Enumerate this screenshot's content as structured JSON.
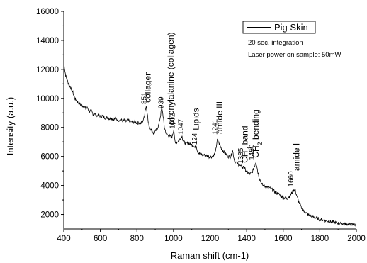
{
  "chart_data": {
    "type": "line",
    "xlabel": "Raman shift (cm-1)",
    "ylabel": "Intensity (a.u.)",
    "xlim": [
      400,
      2000
    ],
    "ylim": [
      1000,
      16000
    ],
    "x_ticks": [
      400,
      600,
      800,
      1000,
      1200,
      1400,
      1600,
      1800,
      2000
    ],
    "y_ticks": [
      2000,
      4000,
      6000,
      8000,
      10000,
      12000,
      14000,
      16000
    ],
    "grid": false,
    "legend": {
      "position": "top-right",
      "entries": [
        "Pig Skin"
      ]
    },
    "notes": [
      "20 sec. integration",
      "Laser power on sample: 50mW"
    ],
    "series": [
      {
        "name": "Pig Skin",
        "color": "#000000",
        "points": [
          [
            400,
            12500
          ],
          [
            405,
            12000
          ],
          [
            410,
            11600
          ],
          [
            420,
            11200
          ],
          [
            430,
            10900
          ],
          [
            440,
            10700
          ],
          [
            450,
            10400
          ],
          [
            460,
            10000
          ],
          [
            470,
            9850
          ],
          [
            480,
            9700
          ],
          [
            490,
            9600
          ],
          [
            500,
            9500
          ],
          [
            510,
            9450
          ],
          [
            520,
            9300
          ],
          [
            530,
            9350
          ],
          [
            540,
            9100
          ],
          [
            550,
            9150
          ],
          [
            560,
            8900
          ],
          [
            570,
            8950
          ],
          [
            580,
            8800
          ],
          [
            590,
            8850
          ],
          [
            600,
            8750
          ],
          [
            610,
            8800
          ],
          [
            620,
            8700
          ],
          [
            630,
            8650
          ],
          [
            640,
            8700
          ],
          [
            650,
            8600
          ],
          [
            660,
            8650
          ],
          [
            670,
            8550
          ],
          [
            680,
            8600
          ],
          [
            690,
            8550
          ],
          [
            700,
            8500
          ],
          [
            710,
            8550
          ],
          [
            720,
            8450
          ],
          [
            730,
            8500
          ],
          [
            740,
            8400
          ],
          [
            750,
            8500
          ],
          [
            760,
            8450
          ],
          [
            770,
            8400
          ],
          [
            780,
            8350
          ],
          [
            790,
            8400
          ],
          [
            800,
            8300
          ],
          [
            810,
            8350
          ],
          [
            820,
            8250
          ],
          [
            830,
            8400
          ],
          [
            840,
            8700
          ],
          [
            845,
            9200
          ],
          [
            851,
            9450
          ],
          [
            857,
            9000
          ],
          [
            862,
            8300
          ],
          [
            870,
            8000
          ],
          [
            880,
            7800
          ],
          [
            890,
            7600
          ],
          [
            900,
            7700
          ],
          [
            910,
            7900
          ],
          [
            920,
            8200
          ],
          [
            930,
            8900
          ],
          [
            935,
            9300
          ],
          [
            939,
            9200
          ],
          [
            945,
            8600
          ],
          [
            950,
            8000
          ],
          [
            960,
            7600
          ],
          [
            970,
            7450
          ],
          [
            980,
            7400
          ],
          [
            990,
            7300
          ],
          [
            995,
            7500
          ],
          [
            1002,
            7900
          ],
          [
            1006,
            7200
          ],
          [
            1010,
            6900
          ],
          [
            1020,
            7000
          ],
          [
            1030,
            7100
          ],
          [
            1040,
            7300
          ],
          [
            1047,
            7400
          ],
          [
            1052,
            7100
          ],
          [
            1060,
            6950
          ],
          [
            1070,
            6900
          ],
          [
            1080,
            6950
          ],
          [
            1090,
            6850
          ],
          [
            1100,
            6800
          ],
          [
            1110,
            6750
          ],
          [
            1117,
            6600
          ],
          [
            1124,
            6800
          ],
          [
            1130,
            6400
          ],
          [
            1140,
            6200
          ],
          [
            1150,
            6150
          ],
          [
            1160,
            6100
          ],
          [
            1170,
            6100
          ],
          [
            1180,
            6050
          ],
          [
            1190,
            6000
          ],
          [
            1200,
            5950
          ],
          [
            1210,
            6000
          ],
          [
            1220,
            6050
          ],
          [
            1230,
            6300
          ],
          [
            1238,
            7050
          ],
          [
            1241,
            7150
          ],
          [
            1246,
            7000
          ],
          [
            1252,
            6800
          ],
          [
            1260,
            6600
          ],
          [
            1270,
            6400
          ],
          [
            1280,
            6250
          ],
          [
            1290,
            6100
          ],
          [
            1300,
            6000
          ],
          [
            1310,
            5950
          ],
          [
            1318,
            6150
          ],
          [
            1322,
            6500
          ],
          [
            1326,
            6200
          ],
          [
            1332,
            5800
          ],
          [
            1340,
            5600
          ],
          [
            1350,
            5500
          ],
          [
            1360,
            5400
          ],
          [
            1370,
            5300
          ],
          [
            1378,
            5200
          ],
          [
            1385,
            5350
          ],
          [
            1392,
            5100
          ],
          [
            1400,
            4950
          ],
          [
            1410,
            4850
          ],
          [
            1420,
            4800
          ],
          [
            1430,
            4900
          ],
          [
            1440,
            5200
          ],
          [
            1447,
            5500
          ],
          [
            1450,
            5600
          ],
          [
            1455,
            5400
          ],
          [
            1460,
            5000
          ],
          [
            1470,
            4500
          ],
          [
            1480,
            4150
          ],
          [
            1490,
            4000
          ],
          [
            1500,
            3950
          ],
          [
            1510,
            3900
          ],
          [
            1520,
            3850
          ],
          [
            1530,
            3800
          ],
          [
            1540,
            3700
          ],
          [
            1550,
            3600
          ],
          [
            1560,
            3500
          ],
          [
            1570,
            3450
          ],
          [
            1580,
            3350
          ],
          [
            1590,
            3250
          ],
          [
            1600,
            3150
          ],
          [
            1610,
            3100
          ],
          [
            1620,
            3100
          ],
          [
            1630,
            3200
          ],
          [
            1640,
            3350
          ],
          [
            1650,
            3550
          ],
          [
            1655,
            3650
          ],
          [
            1660,
            3700
          ],
          [
            1665,
            3650
          ],
          [
            1670,
            3450
          ],
          [
            1680,
            3050
          ],
          [
            1690,
            2700
          ],
          [
            1700,
            2450
          ],
          [
            1710,
            2250
          ],
          [
            1720,
            2150
          ],
          [
            1730,
            2050
          ],
          [
            1740,
            1950
          ],
          [
            1750,
            1900
          ],
          [
            1760,
            1850
          ],
          [
            1770,
            1800
          ],
          [
            1780,
            1750
          ],
          [
            1790,
            1700
          ],
          [
            1800,
            1650
          ],
          [
            1820,
            1600
          ],
          [
            1840,
            1550
          ],
          [
            1860,
            1500
          ],
          [
            1880,
            1450
          ],
          [
            1900,
            1400
          ],
          [
            1920,
            1380
          ],
          [
            1940,
            1350
          ],
          [
            1960,
            1320
          ],
          [
            1980,
            1300
          ],
          [
            2000,
            1250
          ]
        ]
      }
    ],
    "annotations": [
      {
        "text": "851",
        "x": 851,
        "y": 9600,
        "size": "small"
      },
      {
        "text": "collagen",
        "x": 875,
        "y": 9700,
        "size": "large"
      },
      {
        "text": "939",
        "x": 944,
        "y": 9300,
        "size": "small"
      },
      {
        "text": "phenylalanine (collagen)",
        "x": 1000,
        "y": 8200,
        "size": "large"
      },
      {
        "text": "1002",
        "x": 1006,
        "y": 7900,
        "size": "small"
      },
      {
        "text": "1047",
        "x": 1052,
        "y": 7500,
        "size": "small"
      },
      {
        "text": "Lipids",
        "x": 1138,
        "y": 7800,
        "size": "large"
      },
      {
        "text": "124",
        "x": 1128,
        "y": 6800,
        "size": "small"
      },
      {
        "text": "1241",
        "x": 1238,
        "y": 7500,
        "size": "small"
      },
      {
        "text": "amide III",
        "x": 1268,
        "y": 7550,
        "size": "large"
      },
      {
        "text": "1385",
        "x": 1380,
        "y": 5500,
        "size": "small"
      },
      {
        "text": "CH3 band",
        "x": 1405,
        "y": 5550,
        "size": "large"
      },
      {
        "text": "1450",
        "x": 1440,
        "y": 5750,
        "size": "small"
      },
      {
        "text": "CH2 bending",
        "x": 1465,
        "y": 5900,
        "size": "large"
      },
      {
        "text": "1660",
        "x": 1656,
        "y": 3900,
        "size": "small"
      },
      {
        "text": "amide I",
        "x": 1688,
        "y": 5000,
        "size": "large"
      }
    ]
  }
}
